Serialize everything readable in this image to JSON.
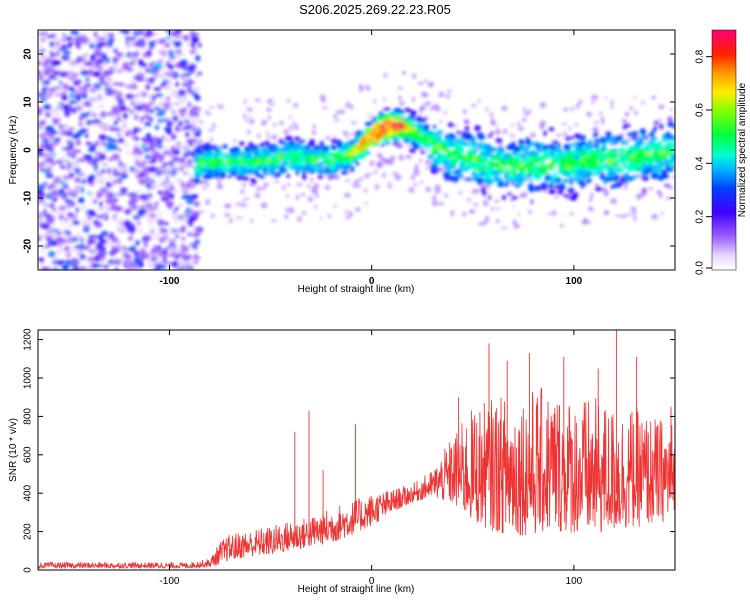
{
  "title": "S206.2025.269.22.23.R05",
  "chart_data": [
    {
      "type": "heatmap",
      "title": "S206.2025.269.22.23.R05",
      "xlabel": "Height of straight line (km)",
      "ylabel": "Frequency (Hz)",
      "xlim": [
        -165,
        150
      ],
      "ylim": [
        -25,
        25
      ],
      "xticks": [
        -100,
        0,
        100
      ],
      "xtick_labels": [
        "-100",
        "0",
        "100"
      ],
      "yticks": [
        -20,
        -10,
        0,
        10,
        20
      ],
      "ytick_labels": [
        "-20",
        "-10",
        "0",
        "10",
        "20"
      ],
      "noise_region_x": [
        -165,
        -85
      ],
      "signal_start_x": -87,
      "ridge": {
        "x": [
          -87,
          -80,
          -70,
          -60,
          -50,
          -40,
          -30,
          -20,
          -10,
          0,
          5,
          10,
          15,
          20,
          25,
          30,
          40,
          50,
          60,
          70,
          80,
          90,
          100,
          110,
          120,
          130,
          140,
          148
        ],
        "y": [
          -3,
          -2.5,
          -2.5,
          -2.5,
          -2,
          -1.5,
          -2,
          -2,
          -1,
          3,
          4.5,
          5,
          5,
          4,
          3,
          1,
          -1,
          -2,
          -3,
          -3.5,
          -3,
          -3,
          -3,
          -2,
          -2,
          -1.5,
          -1,
          0
        ]
      },
      "peak_x": 5,
      "peak_y": 4.5,
      "colorbar": {
        "label": "Normalized spectral amplitude",
        "range": [
          0.0,
          0.9
        ],
        "ticks": [
          0.0,
          0.2,
          0.4,
          0.6,
          0.8
        ],
        "tick_labels": [
          "0.0",
          "0.2",
          "0.4",
          "0.6",
          "0.8"
        ]
      }
    },
    {
      "type": "line",
      "xlabel": "Height of straight line (km)",
      "ylabel": "SNR (10 * v/v)",
      "xlim": [
        -165,
        150
      ],
      "ylim": [
        0,
        1250
      ],
      "xticks": [
        -100,
        0,
        100
      ],
      "xtick_labels": [
        "-100",
        "0",
        "100"
      ],
      "yticks": [
        0,
        200,
        400,
        600,
        800,
        1000,
        1200
      ],
      "ytick_labels": [
        "0",
        "200",
        "400",
        "600",
        "800",
        "1000",
        "1200"
      ],
      "color": "#ee3333",
      "envelope": {
        "x": [
          -165,
          -90,
          -80,
          -75,
          -70,
          -60,
          -50,
          -40,
          -30,
          -20,
          -10,
          0,
          10,
          20,
          30,
          40,
          50,
          60,
          70,
          80,
          90,
          100,
          110,
          120,
          130,
          140,
          150
        ],
        "lower": [
          10,
          10,
          15,
          30,
          50,
          70,
          80,
          100,
          120,
          140,
          180,
          230,
          300,
          350,
          380,
          340,
          250,
          200,
          180,
          180,
          200,
          190,
          180,
          200,
          220,
          240,
          260
        ],
        "upper": [
          40,
          40,
          60,
          150,
          190,
          210,
          230,
          260,
          280,
          330,
          360,
          400,
          420,
          450,
          520,
          700,
          850,
          900,
          920,
          950,
          950,
          900,
          900,
          850,
          850,
          800,
          780
        ]
      },
      "spikes": [
        {
          "x": -38,
          "y": 720
        },
        {
          "x": -31,
          "y": 830
        },
        {
          "x": -24,
          "y": 520
        },
        {
          "x": -8,
          "y": 760
        },
        {
          "x": 43,
          "y": 900
        },
        {
          "x": 58,
          "y": 1180
        },
        {
          "x": 67,
          "y": 1090
        },
        {
          "x": 78,
          "y": 1130
        },
        {
          "x": 95,
          "y": 1110
        },
        {
          "x": 112,
          "y": 1050
        },
        {
          "x": 121,
          "y": 1250
        },
        {
          "x": 131,
          "y": 1110
        },
        {
          "x": 148,
          "y": 850
        }
      ]
    }
  ]
}
